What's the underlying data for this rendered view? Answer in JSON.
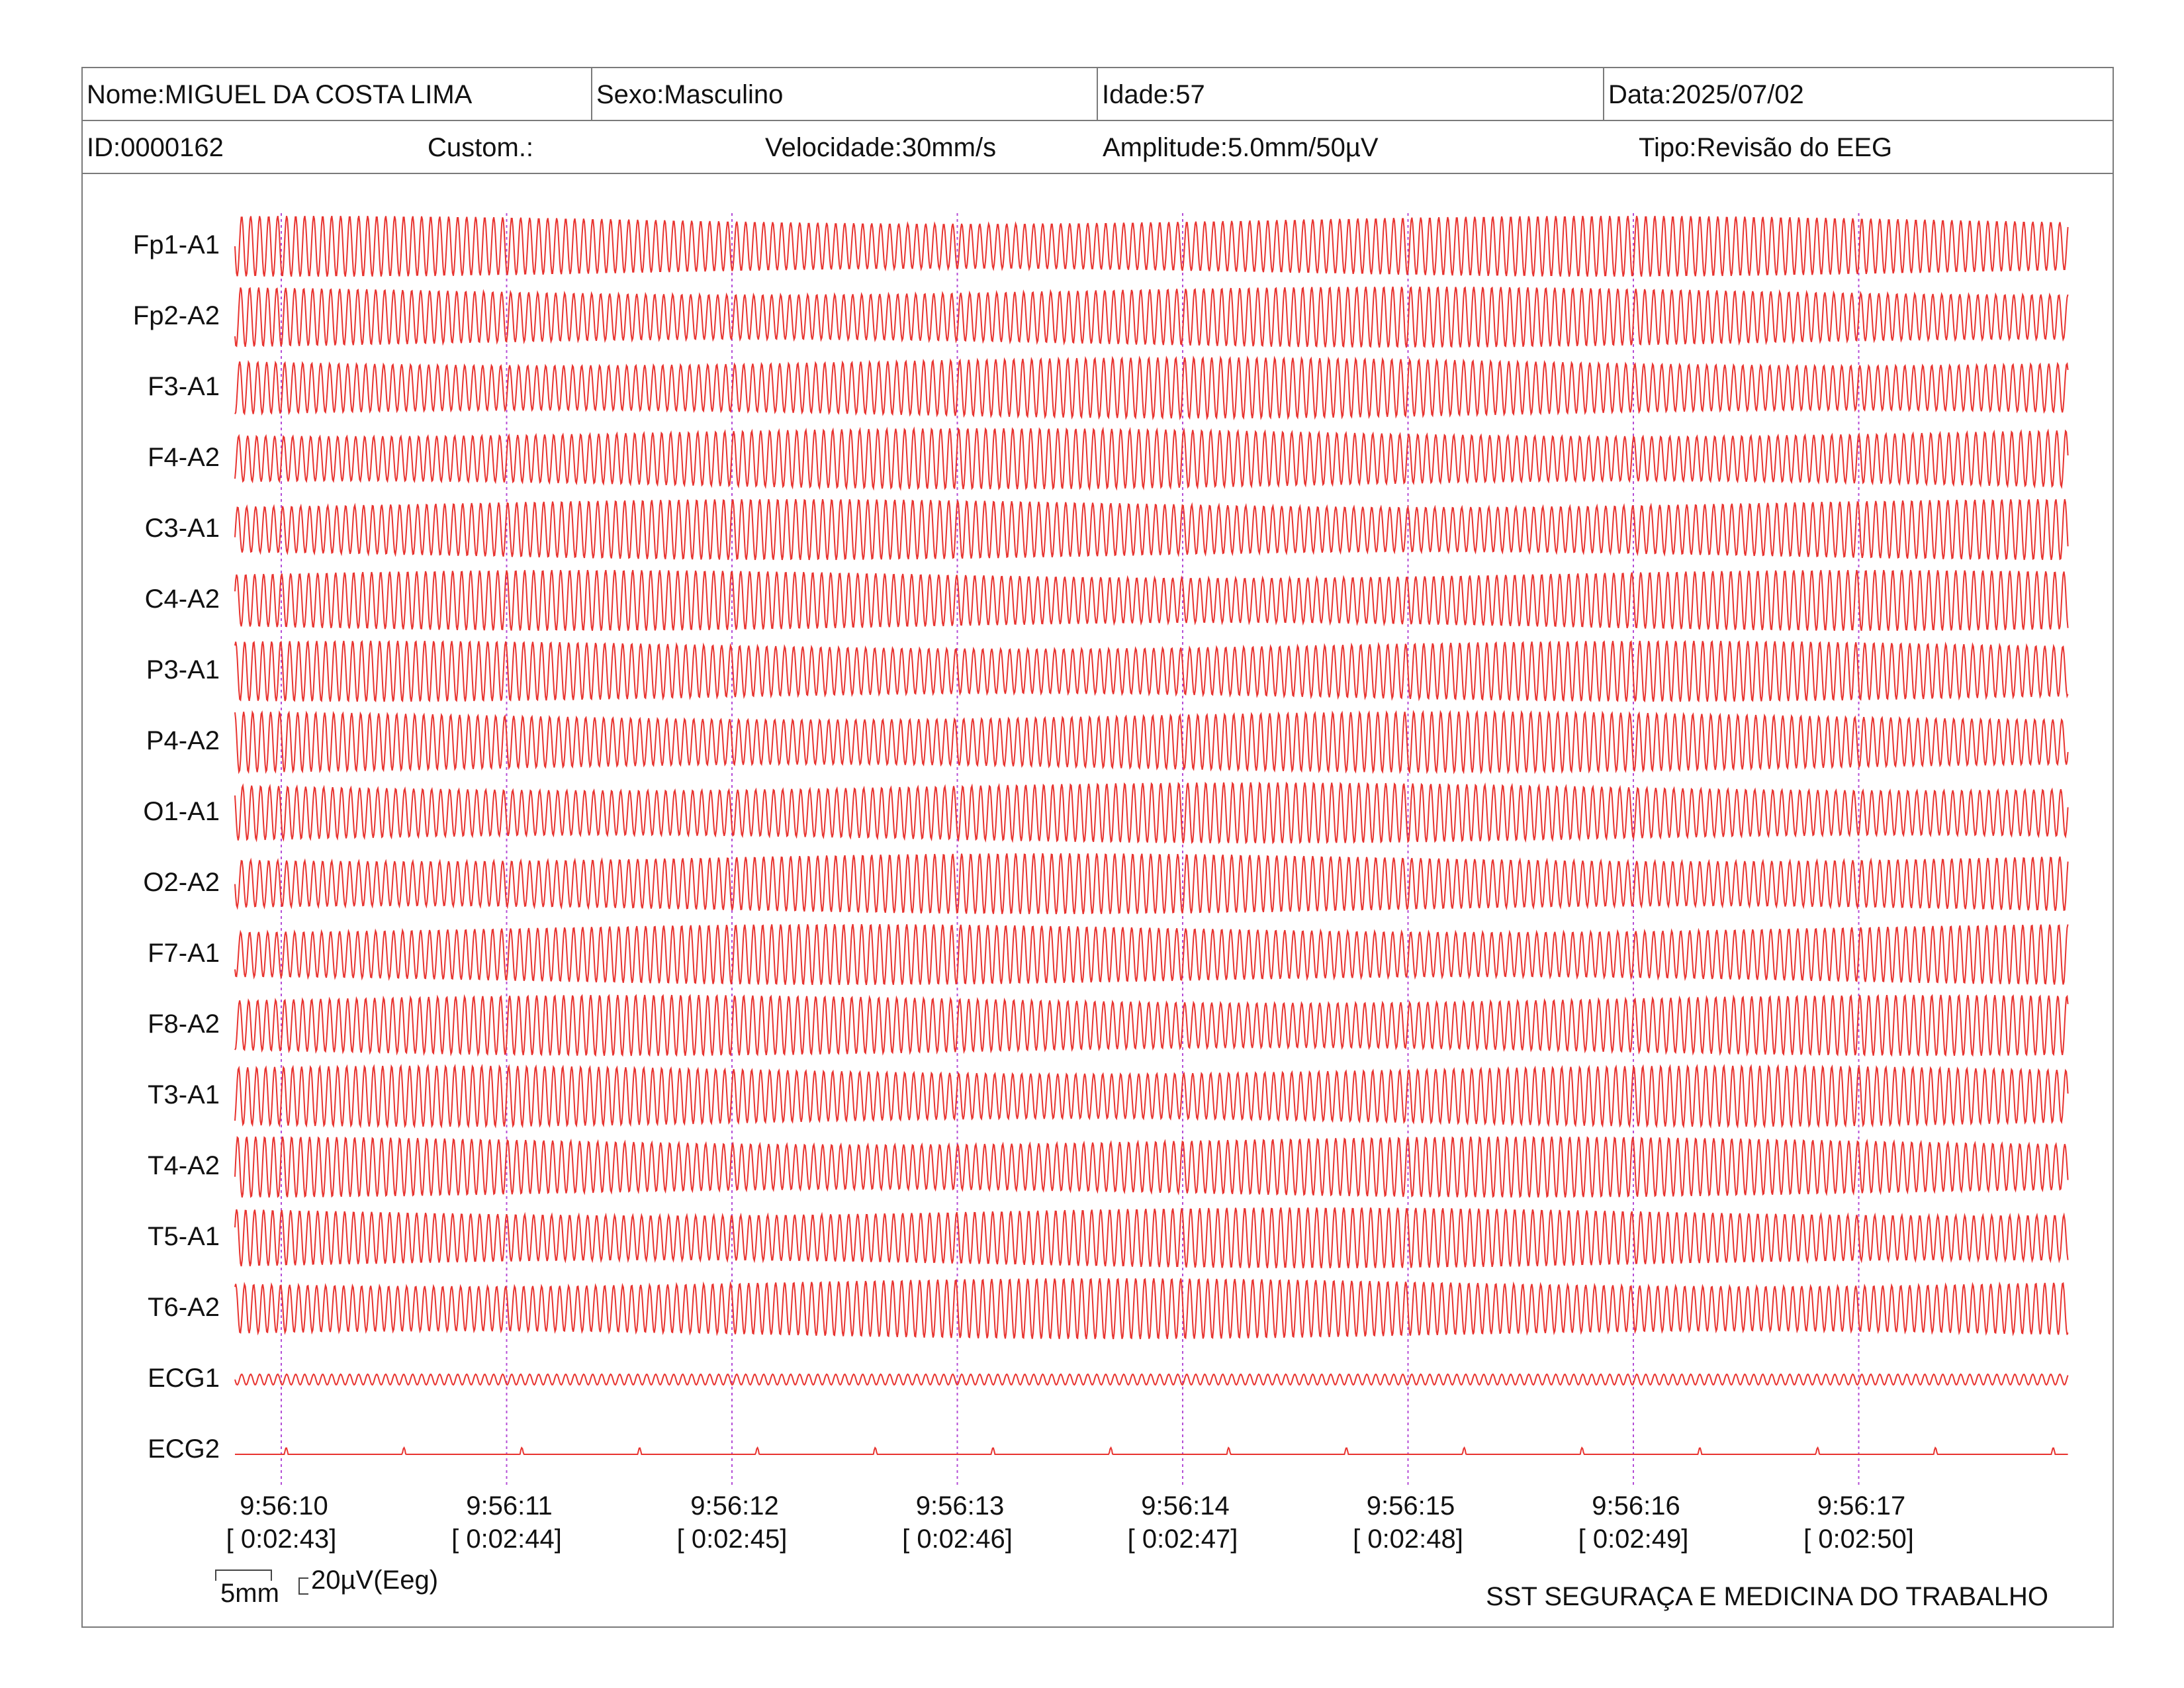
{
  "header": {
    "nome": "Nome:MIGUEL DA COSTA LIMA",
    "sexo": "Sexo:Masculino",
    "idade": "Idade:57",
    "data": "Data:2025/07/02",
    "id": "ID:0000162",
    "custom": "Custom.:",
    "velocidade": "Velocidade:30mm/s",
    "amplitude": "Amplitude:5.0mm/50µV",
    "tipo": "Tipo:Revisão do EEG"
  },
  "channels": [
    "Fp1-A1",
    "Fp2-A2",
    "F3-A1",
    "F4-A2",
    "C3-A1",
    "C4-A2",
    "P3-A1",
    "P4-A2",
    "O1-A1",
    "O2-A2",
    "F7-A1",
    "F8-A2",
    "T3-A1",
    "T4-A2",
    "T5-A1",
    "T6-A2",
    "ECG1",
    "ECG2"
  ],
  "time_marks": [
    {
      "clock": "9:56:10",
      "elapsed": "[ 0:02:43]"
    },
    {
      "clock": "9:56:11",
      "elapsed": "[ 0:02:44]"
    },
    {
      "clock": "9:56:12",
      "elapsed": "[ 0:02:45]"
    },
    {
      "clock": "9:56:13",
      "elapsed": "[ 0:02:46]"
    },
    {
      "clock": "9:56:14",
      "elapsed": "[ 0:02:47]"
    },
    {
      "clock": "9:56:15",
      "elapsed": "[ 0:02:48]"
    },
    {
      "clock": "9:56:16",
      "elapsed": "[ 0:02:49]"
    },
    {
      "clock": "9:56:17",
      "elapsed": "[ 0:02:50]"
    }
  ],
  "scale": {
    "time_label": "5mm",
    "amp_label": "20µV(Eeg)"
  },
  "footer": {
    "brand": "SST SEGURAÇA E MEDICINA DO TRABALHO"
  },
  "colors": {
    "trace": "#e8332f",
    "marker": "#b44cd6",
    "border": "#7a7a7a"
  }
}
